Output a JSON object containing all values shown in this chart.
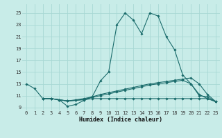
{
  "xlabel": "Humidex (Indice chaleur)",
  "background_color": "#c8ece8",
  "grid_color": "#a8d8d4",
  "line_color": "#1a6b6b",
  "xlim": [
    -0.5,
    23.5
  ],
  "ylim": [
    8.5,
    26.5
  ],
  "yticks": [
    9,
    11,
    13,
    15,
    17,
    19,
    21,
    23,
    25
  ],
  "xticks": [
    0,
    1,
    2,
    3,
    4,
    5,
    6,
    7,
    8,
    9,
    10,
    11,
    12,
    13,
    14,
    15,
    16,
    17,
    18,
    19,
    20,
    21,
    22,
    23
  ],
  "series": [
    {
      "x": [
        0,
        1,
        2,
        3,
        4,
        5,
        6,
        7,
        8,
        9,
        10,
        11,
        12,
        13,
        14,
        15,
        16,
        17,
        18,
        19,
        20,
        21,
        22,
        23
      ],
      "y": [
        13,
        12.2,
        10.5,
        10.5,
        10.3,
        9.2,
        9.5,
        10.2,
        10.8,
        13.5,
        15,
        23,
        25,
        23.8,
        21.5,
        25,
        24.5,
        21,
        18.8,
        14.5,
        13,
        11.2,
        10.5,
        10
      ]
    },
    {
      "x": [
        2,
        3,
        4,
        5,
        6,
        7,
        8,
        9,
        10,
        11,
        12,
        13,
        14,
        15,
        16,
        17,
        18,
        19,
        20,
        21,
        22,
        23
      ],
      "y": [
        10.5,
        10.5,
        10.3,
        10.1,
        10.2,
        10.3,
        10.5,
        10.5,
        10.5,
        10.5,
        10.5,
        10.5,
        10.5,
        10.5,
        10.5,
        10.5,
        10.5,
        10.5,
        10.5,
        10.5,
        10.5,
        10
      ]
    },
    {
      "x": [
        2,
        3,
        4,
        5,
        6,
        7,
        8,
        9,
        10,
        11,
        12,
        13,
        14,
        15,
        16,
        17,
        18,
        19,
        20,
        21,
        22,
        23
      ],
      "y": [
        10.5,
        10.5,
        10.3,
        10.1,
        10.3,
        10.5,
        10.8,
        11.2,
        11.5,
        11.8,
        12.1,
        12.4,
        12.7,
        13.0,
        13.2,
        13.4,
        13.6,
        13.8,
        14.0,
        13.0,
        11.2,
        10
      ]
    },
    {
      "x": [
        2,
        3,
        4,
        5,
        6,
        7,
        8,
        9,
        10,
        11,
        12,
        13,
        14,
        15,
        16,
        17,
        18,
        19,
        20,
        21,
        22,
        23
      ],
      "y": [
        10.5,
        10.5,
        10.3,
        10.1,
        10.2,
        10.4,
        10.7,
        11.0,
        11.3,
        11.6,
        11.9,
        12.2,
        12.5,
        12.8,
        13.0,
        13.2,
        13.4,
        13.6,
        13.0,
        11.0,
        10.8,
        10
      ]
    }
  ]
}
